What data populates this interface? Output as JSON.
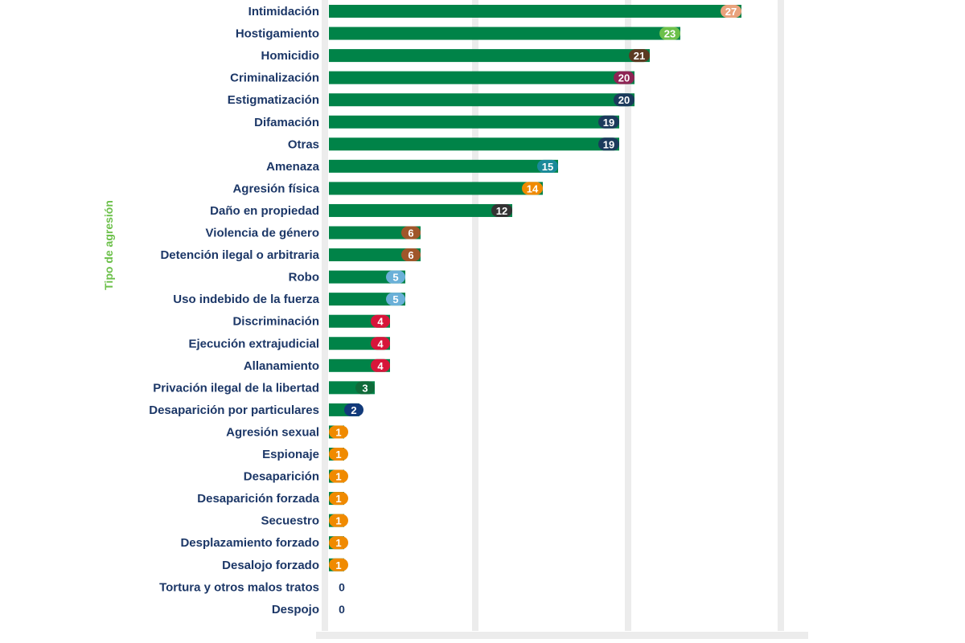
{
  "chart_data": {
    "type": "bar",
    "orientation": "horizontal",
    "ylabel": "Tipo de agresión",
    "xlabel": "",
    "xlim": [
      0,
      30
    ],
    "gridlines": [
      0,
      10,
      20,
      30
    ],
    "grid": true,
    "bar_color": "#008348",
    "categories": [
      "Intimidación",
      "Hostigamiento",
      "Homicidio",
      "Criminalización",
      "Estigmatización",
      "Difamación",
      "Otras",
      "Amenaza",
      "Agresión física",
      "Daño en propiedad",
      "Violencia de género",
      "Detención ilegal o arbitraria",
      "Robo",
      "Uso indebido de la fuerza",
      "Discriminación",
      "Ejecución extrajudicial",
      "Allanamiento",
      "Privación ilegal de la libertad",
      "Desaparición por particulares",
      "Agresión sexual",
      "Espionaje",
      "Desaparición",
      "Desaparición forzada",
      "Secuestro",
      "Desplazamiento forzado",
      "Desalojo forzado",
      "Tortura y otros malos tratos",
      "Despojo"
    ],
    "values": [
      27,
      23,
      21,
      20,
      20,
      19,
      19,
      15,
      14,
      12,
      6,
      6,
      5,
      5,
      4,
      4,
      4,
      3,
      2,
      1,
      1,
      1,
      1,
      1,
      1,
      1,
      0,
      0
    ],
    "badge_colors": [
      "#e9a27c",
      "#6cc04a",
      "#5b3a22",
      "#8e2454",
      "#1b3a5c",
      "#1b3a5c",
      "#1b3a5c",
      "#1a8a9a",
      "#f08a00",
      "#333333",
      "#a0562a",
      "#a0562a",
      "#6ab0d8",
      "#6ab0d8",
      "#d7153a",
      "#d7153a",
      "#d7153a",
      "#0f6b3a",
      "#123a7a",
      "#f08a00",
      "#f08a00",
      "#f08a00",
      "#f08a00",
      "#f08a00",
      "#f08a00",
      "#f08a00",
      "",
      ""
    ]
  }
}
